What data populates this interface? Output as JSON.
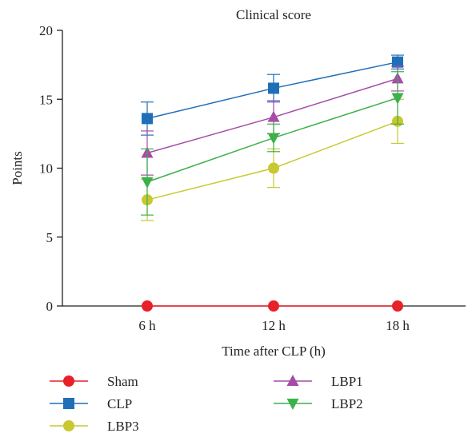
{
  "chart_data": {
    "type": "line",
    "title": "Clinical score",
    "xlabel": "Time after CLP (h)",
    "ylabel": "Points",
    "categories": [
      "6 h",
      "12 h",
      "18 h"
    ],
    "ylim": [
      0,
      20
    ],
    "yticks": [
      0,
      5,
      10,
      15,
      20
    ],
    "grid": false,
    "legend_position": "bottom",
    "series": [
      {
        "name": "Sham",
        "color": "#e8202a",
        "marker": "circle",
        "values": [
          0,
          0,
          0
        ],
        "errors": [
          0,
          0,
          0
        ]
      },
      {
        "name": "CLP",
        "color": "#1f6fb8",
        "marker": "square",
        "values": [
          13.6,
          15.8,
          17.7
        ],
        "errors": [
          1.2,
          1.0,
          0.5
        ]
      },
      {
        "name": "LBP3",
        "color": "#c8c830",
        "marker": "circle",
        "values": [
          7.7,
          10.0,
          13.4
        ],
        "errors": [
          1.5,
          1.4,
          1.6
        ]
      },
      {
        "name": "LBP1",
        "color": "#a64ca6",
        "marker": "triangle-up",
        "values": [
          11.1,
          13.7,
          16.5
        ],
        "errors": [
          1.6,
          1.2,
          0.9
        ]
      },
      {
        "name": "LBP2",
        "color": "#3cb04a",
        "marker": "triangle-down",
        "values": [
          9.0,
          12.2,
          15.1
        ],
        "errors": [
          2.4,
          1.0,
          1.9
        ]
      }
    ]
  }
}
